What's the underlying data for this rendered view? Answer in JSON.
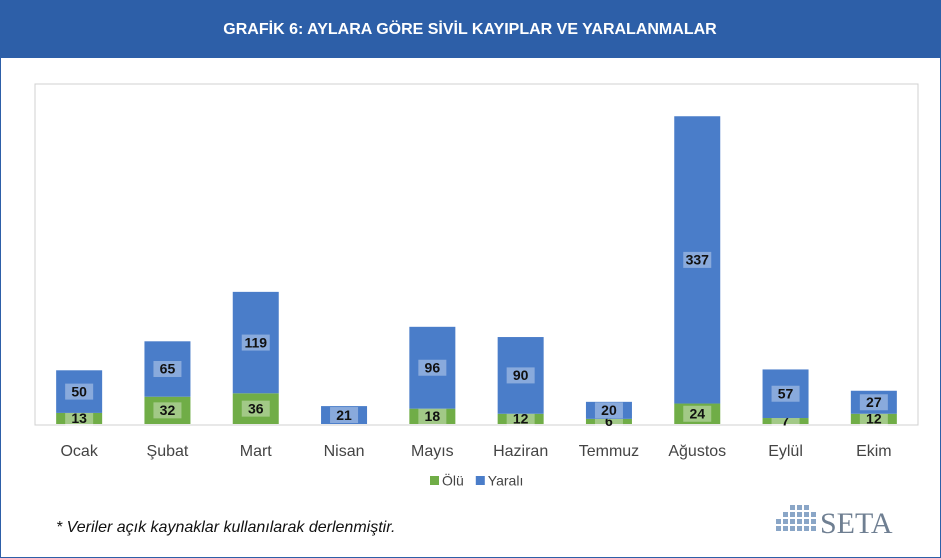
{
  "chart_data": {
    "type": "stacked_bar",
    "title": "GRAFİK 6: AYLARA GÖRE SİVİL KAYIPLAR VE YARALANMALAR",
    "categories": [
      "Ocak",
      "Şubat",
      "Mart",
      "Nisan",
      "Mayıs",
      "Haziran",
      "Temmuz",
      "Ağustos",
      "Eylül",
      "Ekim"
    ],
    "series": [
      {
        "name": "Ölü",
        "color": "#70ad47",
        "values": [
          13,
          32,
          36,
          null,
          18,
          12,
          6,
          24,
          7,
          12
        ]
      },
      {
        "name": "Yaralı",
        "color": "#4a7dc9",
        "values": [
          50,
          65,
          119,
          21,
          96,
          90,
          20,
          337,
          57,
          27
        ]
      }
    ],
    "ylim": [
      0,
      400
    ],
    "note": "* Veriler açık kaynaklar kullanılarak derlenmiştir."
  },
  "logo": "SETA"
}
